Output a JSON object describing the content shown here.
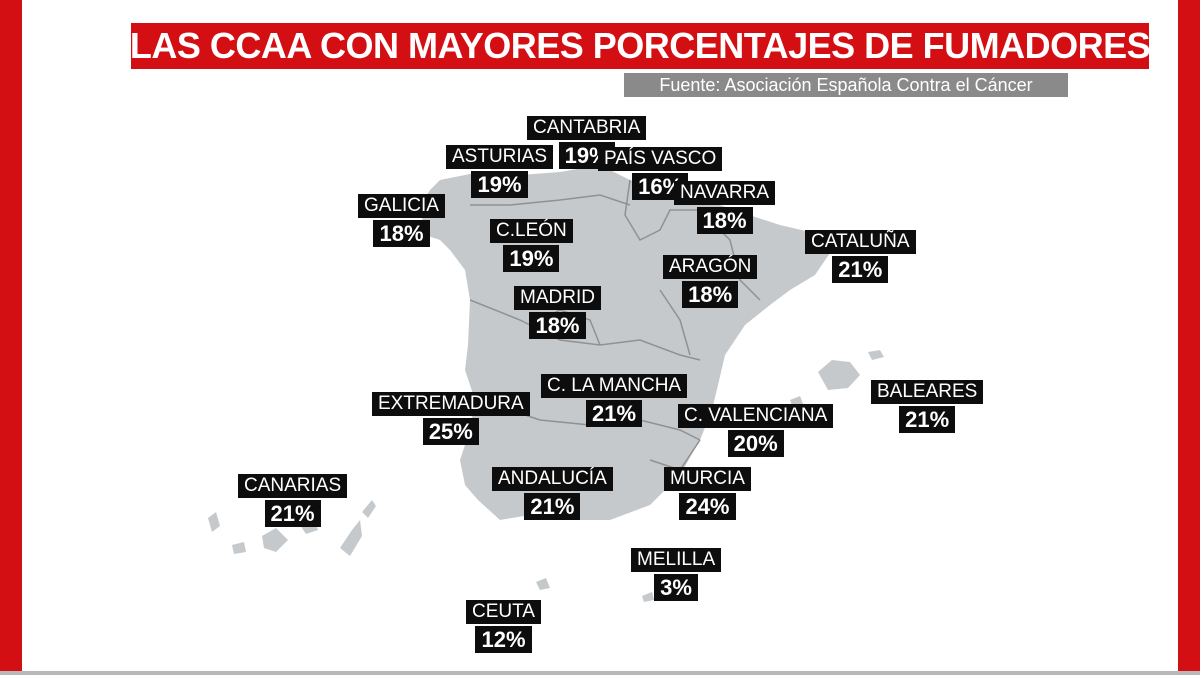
{
  "title": "LAS CCAA CON MAYORES PORCENTAJES DE FUMADORES",
  "source": "Fuente: Asociación Española Contra el Cáncer",
  "colors": {
    "accent": "#d40f14",
    "land": "#c6c9cb",
    "border": "#8e9294",
    "label_bg": "#0d0d0d"
  },
  "regions": [
    {
      "name": "GALICIA",
      "value": "18%"
    },
    {
      "name": "ASTURIAS",
      "value": "19%"
    },
    {
      "name": "CANTABRIA",
      "value": "19%"
    },
    {
      "name": "PAÍS VASCO",
      "value": "16%"
    },
    {
      "name": "NAVARRA",
      "value": "18%"
    },
    {
      "name": "C.LEÓN",
      "value": "19%"
    },
    {
      "name": "CATALUÑA",
      "value": "21%"
    },
    {
      "name": "ARAGÓN",
      "value": "18%"
    },
    {
      "name": "MADRID",
      "value": "18%"
    },
    {
      "name": "C. LA MANCHA",
      "value": "21%"
    },
    {
      "name": "EXTREMADURA",
      "value": "25%"
    },
    {
      "name": "BALEARES",
      "value": "21%"
    },
    {
      "name": "C. VALENCIANA",
      "value": "20%"
    },
    {
      "name": "CANARIAS",
      "value": "21%"
    },
    {
      "name": "ANDALUCÍA",
      "value": "21%"
    },
    {
      "name": "MURCIA",
      "value": "24%"
    },
    {
      "name": "MELILLA",
      "value": "3%"
    },
    {
      "name": "CEUTA",
      "value": "12%"
    }
  ]
}
